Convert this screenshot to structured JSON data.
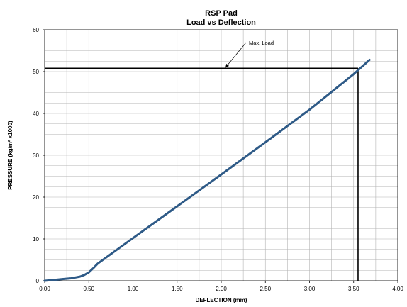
{
  "chart_data": {
    "type": "line",
    "title": "RSP Pad",
    "subtitle": "Load vs Deflection",
    "xlabel": "DEFLECTION (mm)",
    "ylabel": "PRESSURE (kg/m² x1000)",
    "xlim": [
      0,
      4
    ],
    "ylim": [
      0,
      60
    ],
    "xticks": [
      "0.00",
      "0.50",
      "1.00",
      "1.50",
      "2.00",
      "2.50",
      "3.00",
      "3.50",
      "4.00"
    ],
    "yticks": [
      "0",
      "10",
      "20",
      "30",
      "40",
      "50",
      "60"
    ],
    "grid": true,
    "series": [
      {
        "color": "#2E5A87",
        "x": [
          0.0,
          0.1,
          0.2,
          0.3,
          0.4,
          0.45,
          0.5,
          0.55,
          0.6,
          1.0,
          1.5,
          2.0,
          2.5,
          3.0,
          3.5,
          3.68
        ],
        "y": [
          0.0,
          0.2,
          0.4,
          0.6,
          1.0,
          1.4,
          2.0,
          3.0,
          4.1,
          10.2,
          17.8,
          25.4,
          33.1,
          40.9,
          49.4,
          52.8
        ]
      }
    ],
    "max_load": {
      "label": "Max. Load",
      "x": 3.55,
      "y": 50.8,
      "color": "#000000"
    }
  }
}
